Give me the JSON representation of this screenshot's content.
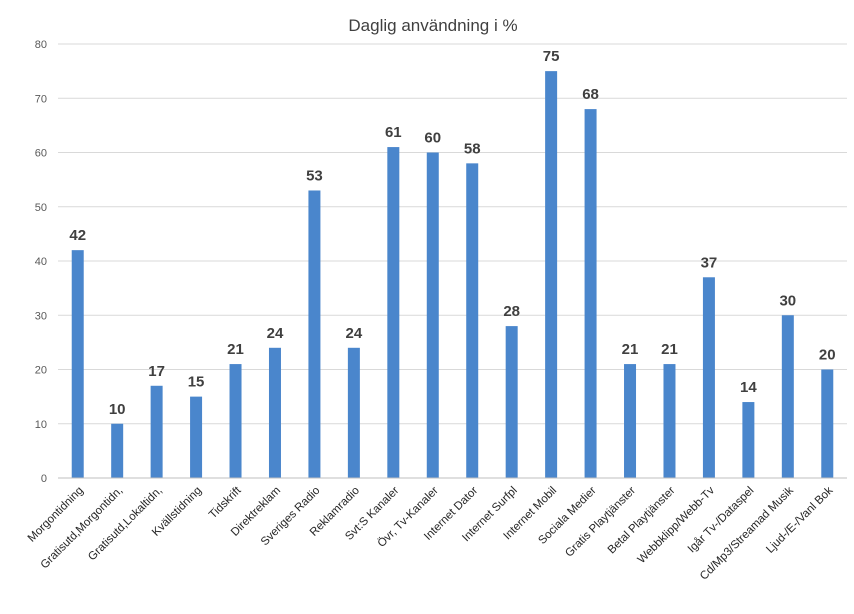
{
  "chart_data": {
    "type": "bar",
    "title": "Daglig användning i %",
    "xlabel": "",
    "ylabel": "",
    "ylim": [
      0,
      80
    ],
    "yticks": [
      0,
      10,
      20,
      30,
      40,
      50,
      60,
      70,
      80
    ],
    "grid": true,
    "bar_color": "#4a86cc",
    "categories": [
      "Morgontidning",
      "Gratisutd,Morgontidn,",
      "Gratisutd,Lokaltidn,",
      "Kvällstidning",
      "Tidskrift",
      "Direktreklam",
      "Sveriges Radio",
      "Reklamradio",
      "Svt:S Kanaler",
      "Övr, Tv-Kanaler",
      "Internet Dator",
      "Internet Surfpl",
      "Internet Mobil",
      "Sociala Medier",
      "Gratis Playtjänster",
      "Betal Playtjänster",
      "Webbklipp/Webb-Tv",
      "Igår Tv-/Dataspel",
      "Cd/Mp3/Streamad Musik",
      "Ljud-/E-/Vanl Bok"
    ],
    "values": [
      42,
      10,
      17,
      15,
      21,
      24,
      53,
      24,
      61,
      60,
      58,
      28,
      75,
      68,
      21,
      21,
      37,
      14,
      30,
      20
    ],
    "data_labels": [
      "42",
      "10",
      "17",
      "15",
      "21",
      "24",
      "53",
      "24",
      "61",
      "60",
      "58",
      "28",
      "75",
      "68",
      "21",
      "21",
      "37",
      "14",
      "30",
      "20"
    ]
  }
}
